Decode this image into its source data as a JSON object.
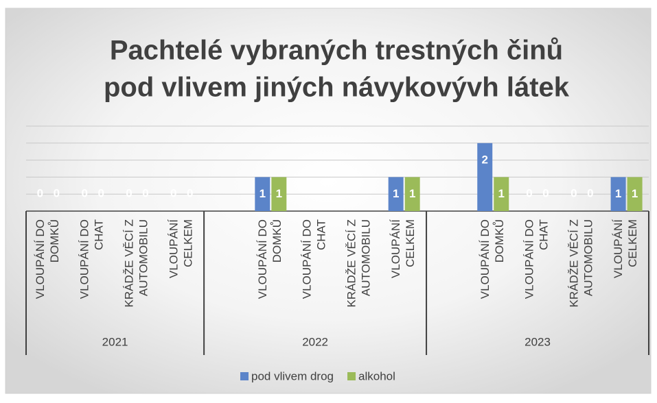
{
  "chart_data": {
    "type": "bar",
    "title": [
      "Pachtelé vybraných trestných činů",
      "pod vlivem jiných návykovývh látek"
    ],
    "groups": [
      {
        "label": "2021",
        "categories": [
          "VLOUPÁNÍ DO DOMKŮ",
          "VLOUPÁNÍ DO CHAT",
          "KRÁDŽE VĚCÍ Z AUTOMOBILU",
          "VLOUPÁNÍ CELKEM"
        ]
      },
      {
        "label": "2022",
        "categories": [
          null,
          "VLOUPÁNÍ DO DOMKŮ",
          "VLOUPÁNÍ DO CHAT",
          "KRÁDŽE VĚCÍ Z AUTOMOBILU",
          "VLOUPÁNÍ CELKEM"
        ]
      },
      {
        "label": "2023",
        "categories": [
          null,
          "VLOUPÁNÍ DO DOMKŮ",
          "VLOUPÁNÍ DO CHAT",
          "KRÁDŽE VĚCÍ Z AUTOMOBILU",
          "VLOUPÁNÍ CELKEM"
        ]
      }
    ],
    "series": [
      {
        "name": "pod vlivem drog",
        "color": "#5b84c9",
        "values": [
          0,
          0,
          0,
          0,
          null,
          1,
          null,
          null,
          1,
          null,
          2,
          0,
          0,
          1
        ]
      },
      {
        "name": "alkohol",
        "color": "#9bbb59",
        "values": [
          0,
          0,
          0,
          0,
          null,
          1,
          null,
          null,
          1,
          null,
          1,
          0,
          0,
          1
        ]
      }
    ],
    "ylim": [
      0,
      2.5
    ],
    "yticks": [
      0,
      0.5,
      1,
      1.5,
      2,
      2.5
    ],
    "grid": true,
    "legend": "bottom"
  }
}
